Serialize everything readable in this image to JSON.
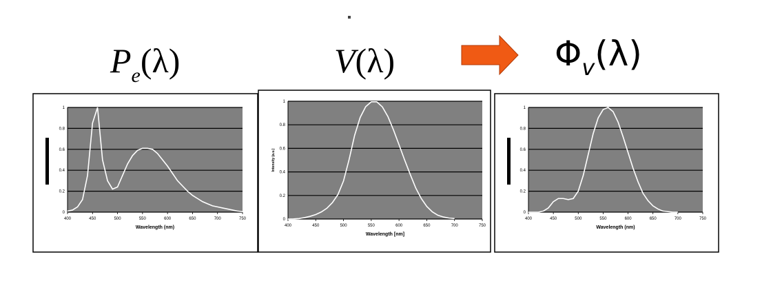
{
  "chart_data": [
    {
      "type": "line",
      "title_symbol": "P",
      "title_subscript": "e",
      "title_argument": "(λ)",
      "x_label": "Wavelength (nm)",
      "x": [
        400,
        410,
        420,
        430,
        440,
        450,
        460,
        470,
        480,
        490,
        500,
        510,
        520,
        530,
        540,
        550,
        560,
        570,
        580,
        590,
        600,
        610,
        620,
        630,
        640,
        650,
        660,
        670,
        680,
        690,
        700,
        710,
        720,
        730,
        740,
        750
      ],
      "series": [
        {
          "color": "#ffffff",
          "values": [
            0.01,
            0.02,
            0.05,
            0.12,
            0.35,
            0.85,
            1.0,
            0.5,
            0.3,
            0.22,
            0.24,
            0.35,
            0.46,
            0.54,
            0.59,
            0.61,
            0.61,
            0.6,
            0.56,
            0.5,
            0.44,
            0.37,
            0.3,
            0.25,
            0.2,
            0.16,
            0.13,
            0.1,
            0.08,
            0.06,
            0.05,
            0.04,
            0.03,
            0.02,
            0.01,
            0.005
          ]
        }
      ],
      "xlim": [
        400,
        750
      ],
      "xticks": [
        400,
        450,
        500,
        550,
        600,
        650,
        700,
        750
      ],
      "ylim": [
        0,
        1
      ],
      "yticks": [
        0,
        0.2,
        0.4,
        0.6,
        0.8,
        1
      ],
      "grid": true
    },
    {
      "type": "line",
      "title_symbol": "V",
      "title_argument": "(λ)",
      "x_label": "Wavelength [nm]",
      "y_label": "Intensity (a.u.)",
      "x": [
        400,
        410,
        420,
        430,
        440,
        450,
        460,
        470,
        480,
        490,
        500,
        510,
        520,
        530,
        540,
        550,
        560,
        570,
        580,
        590,
        600,
        610,
        620,
        630,
        640,
        650,
        660,
        670,
        680,
        690,
        700
      ],
      "series": [
        {
          "color": "#ffffff",
          "values": [
            0,
            0.001,
            0.004,
            0.012,
            0.023,
            0.038,
            0.06,
            0.091,
            0.139,
            0.208,
            0.323,
            0.503,
            0.71,
            0.862,
            0.954,
            0.995,
            0.995,
            0.952,
            0.87,
            0.757,
            0.631,
            0.503,
            0.381,
            0.265,
            0.175,
            0.107,
            0.061,
            0.032,
            0.017,
            0.008,
            0.004
          ]
        }
      ],
      "xlim": [
        400,
        750
      ],
      "xticks": [
        400,
        450,
        500,
        550,
        600,
        650,
        700,
        750
      ],
      "ylim": [
        0,
        1
      ],
      "yticks": [
        0,
        0.2,
        0.4,
        0.6,
        0.8,
        1
      ],
      "grid": true
    },
    {
      "type": "line",
      "title_symbol": "Φ",
      "title_subscript": "v",
      "title_argument": "(λ)",
      "x_label": "Wavelength (nm)",
      "x": [
        400,
        410,
        420,
        430,
        440,
        450,
        460,
        470,
        480,
        490,
        500,
        510,
        520,
        530,
        540,
        550,
        560,
        570,
        580,
        590,
        600,
        610,
        620,
        630,
        640,
        650,
        660,
        670,
        680,
        690,
        700
      ],
      "series": [
        {
          "color": "#ffffff",
          "values": [
            0,
            0,
            0,
            0.01,
            0.04,
            0.1,
            0.13,
            0.13,
            0.12,
            0.13,
            0.2,
            0.35,
            0.55,
            0.75,
            0.9,
            0.98,
            1.0,
            0.96,
            0.86,
            0.72,
            0.57,
            0.42,
            0.29,
            0.18,
            0.11,
            0.06,
            0.03,
            0.01,
            0.005,
            0,
            0
          ]
        }
      ],
      "xlim": [
        400,
        750
      ],
      "xticks": [
        400,
        450,
        500,
        550,
        600,
        650,
        700,
        750
      ],
      "ylim": [
        0,
        1
      ],
      "yticks": [
        0,
        0.2,
        0.4,
        0.6,
        0.8,
        1
      ],
      "grid": true
    }
  ]
}
